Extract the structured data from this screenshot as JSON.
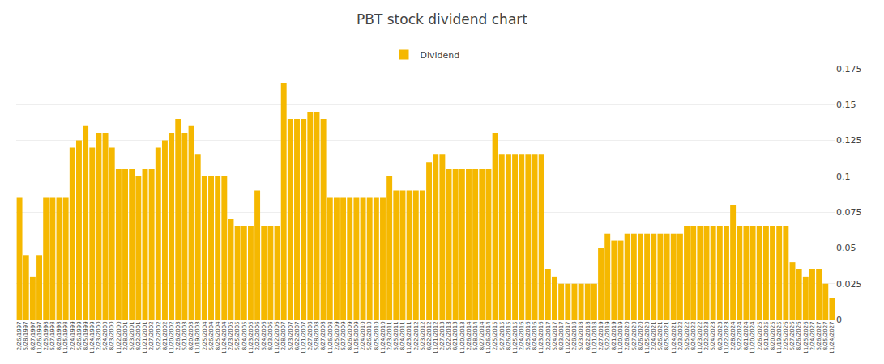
{
  "chart_data": {
    "type": "bar",
    "title": "PBT stock dividend chart",
    "categories": [
      "2/26/1997",
      "5/28/1997",
      "8/27/1997",
      "11/26/1997",
      "2/25/1998",
      "5/27/1998",
      "8/26/1998",
      "11/25/1998",
      "2/24/1999",
      "5/26/1999",
      "8/25/1999",
      "11/24/1999",
      "2/23/2000",
      "5/24/2000",
      "8/23/2000",
      "11/22/2000",
      "2/28/2001",
      "5/23/2001",
      "8/22/2001",
      "11/21/2001",
      "2/27/2002",
      "5/22/2002",
      "8/21/2002",
      "11/20/2002",
      "2/26/2003",
      "5/21/2003",
      "8/20/2003",
      "11/19/2003",
      "2/25/2004",
      "5/26/2004",
      "8/25/2004",
      "11/24/2004",
      "2/23/2005",
      "5/25/2005",
      "8/24/2005",
      "11/23/2005",
      "2/22/2006",
      "5/24/2006",
      "8/23/2006",
      "11/22/2006",
      "2/28/2007",
      "5/23/2007",
      "8/22/2007",
      "11/21/2007",
      "2/27/2008",
      "5/28/2008",
      "8/27/2008",
      "11/26/2008",
      "2/25/2009",
      "5/27/2009",
      "8/26/2009",
      "11/25/2009",
      "2/24/2010",
      "5/26/2010",
      "8/25/2010",
      "11/24/2010",
      "2/23/2011",
      "5/25/2011",
      "8/24/2011",
      "11/23/2011",
      "2/22/2012",
      "5/23/2012",
      "8/22/2012",
      "11/21/2012",
      "2/27/2013",
      "5/22/2013",
      "8/21/2013",
      "11/20/2013",
      "2/26/2014",
      "5/28/2014",
      "8/27/2014",
      "11/26/2014",
      "2/25/2015",
      "5/27/2015",
      "8/26/2015",
      "11/25/2015",
      "2/24/2016",
      "5/25/2016",
      "8/24/2016",
      "11/23/2016",
      "2/22/2017",
      "5/24/2017",
      "8/23/2017",
      "11/22/2017",
      "2/28/2018",
      "5/23/2018",
      "8/22/2018",
      "11/21/2018",
      "2/27/2019",
      "5/22/2019",
      "8/21/2019",
      "11/20/2019",
      "2/26/2020",
      "5/27/2020",
      "8/26/2020",
      "11/25/2020",
      "2/24/2021",
      "5/26/2021",
      "8/25/2021",
      "11/24/2021",
      "2/23/2022",
      "5/25/2022",
      "8/24/2022",
      "11/23/2022",
      "2/22/2023",
      "5/24/2023",
      "8/23/2023",
      "11/22/2023",
      "2/28/2024",
      "5/22/2024",
      "8/21/2024",
      "11/20/2024",
      "2/26/2025",
      "5/21/2025",
      "8/20/2025",
      "11/19/2025",
      "2/25/2026",
      "5/27/2026",
      "8/26/2026",
      "11/25/2026",
      "2/24/2027",
      "5/26/2027",
      "8/25/2027",
      "11/24/2027"
    ],
    "series": [
      {
        "name": "Dividend",
        "color": "#F5B800",
        "values": [
          0.085,
          0.045,
          0.03,
          0.045,
          0.085,
          0.085,
          0.085,
          0.085,
          0.12,
          0.125,
          0.135,
          0.12,
          0.13,
          0.13,
          0.12,
          0.105,
          0.105,
          0.105,
          0.1,
          0.105,
          0.105,
          0.12,
          0.125,
          0.13,
          0.14,
          0.13,
          0.135,
          0.115,
          0.1,
          0.1,
          0.1,
          0.1,
          0.07,
          0.065,
          0.065,
          0.065,
          0.09,
          0.065,
          0.065,
          0.065,
          0.165,
          0.14,
          0.14,
          0.14,
          0.145,
          0.145,
          0.14,
          0.085,
          0.085,
          0.085,
          0.085,
          0.085,
          0.085,
          0.085,
          0.085,
          0.085,
          0.1,
          0.09,
          0.09,
          0.09,
          0.09,
          0.09,
          0.11,
          0.115,
          0.115,
          0.105,
          0.105,
          0.105,
          0.105,
          0.105,
          0.105,
          0.105,
          0.13,
          0.115,
          0.115,
          0.115,
          0.115,
          0.115,
          0.115,
          0.115,
          0.035,
          0.03,
          0.025,
          0.025,
          0.025,
          0.025,
          0.025,
          0.025,
          0.05,
          0.06,
          0.055,
          0.055,
          0.06,
          0.06,
          0.06,
          0.06,
          0.06,
          0.06,
          0.06,
          0.06,
          0.06,
          0.065,
          0.065,
          0.065,
          0.065,
          0.065,
          0.065,
          0.065,
          0.08,
          0.065,
          0.065,
          0.065,
          0.065,
          0.065,
          0.065,
          0.065,
          0.065,
          0.04,
          0.035,
          0.03,
          0.035,
          0.035,
          0.025,
          0.015
        ]
      }
    ],
    "ylim": [
      0,
      0.175
    ],
    "yticks": [
      0,
      0.025,
      0.05,
      0.075,
      0.1,
      0.125,
      0.15,
      0.175
    ],
    "grid": true,
    "legend": "top"
  }
}
